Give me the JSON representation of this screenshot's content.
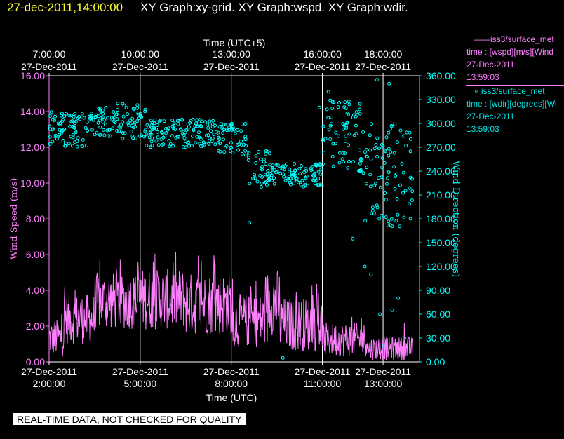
{
  "header": {
    "timestamp": "27-dec-2011,14:00:00",
    "graphs": "XY Graph:xy-grid.  XY Graph:wspd.  XY Graph:wdir."
  },
  "legend": {
    "wspd": {
      "name": "——iss3/surface_met",
      "var": "time : [wspd][m/s][Wind",
      "date": "27-Dec-2011",
      "time": "13:59:03"
    },
    "wdir": {
      "name": "∘ iss3/surface_met",
      "var": "time : [wdir][degrees][Wi",
      "date": "27-Dec-2011",
      "time": "13:59:03"
    }
  },
  "footer": {
    "note": "REAL-TIME DATA, NOT CHECKED FOR QUALITY"
  },
  "colors": {
    "wspd": "#ff80ff",
    "wdir": "#00ffff",
    "grid": "#ffffff",
    "header_time": "#ffff33"
  },
  "chart_data": {
    "type": "line",
    "title": "",
    "top_axis_label": "Time (UTC+5)",
    "xlabel": "Time (UTC)",
    "ylabel": "Wind Speed (m/s)",
    "y2label": "Wind Direction (degrees)",
    "xlim_hours": [
      2.0,
      14.2
    ],
    "ylim": [
      0,
      16
    ],
    "y2lim": [
      0,
      360
    ],
    "y_ticks": [
      "0.00",
      "2.00",
      "4.00",
      "6.00",
      "8.00",
      "10.00",
      "12.00",
      "14.00",
      "16.00"
    ],
    "y2_ticks": [
      "0.00",
      "30.00",
      "60.00",
      "90.00",
      "120.00",
      "150.00",
      "180.00",
      "210.00",
      "240.00",
      "270.00",
      "300.00",
      "330.00",
      "360.00"
    ],
    "bottom_ticks": [
      {
        "hour": 2,
        "date": "27-Dec-2011",
        "time": "2:00:00"
      },
      {
        "hour": 5,
        "date": "27-Dec-2011",
        "time": "5:00:00"
      },
      {
        "hour": 8,
        "date": "27-Dec-2011",
        "time": "8:00:00"
      },
      {
        "hour": 11,
        "date": "27-Dec-2011",
        "time": "11:00:00"
      },
      {
        "hour": 13,
        "date": "27-Dec-2011",
        "time": "13:00:00"
      }
    ],
    "top_ticks": [
      {
        "hour": 2,
        "time": "7:00:00",
        "date": "27-Dec-2011"
      },
      {
        "hour": 5,
        "time": "10:00:00",
        "date": "27-Dec-2011"
      },
      {
        "hour": 8,
        "time": "13:00:00",
        "date": "27-Dec-2011"
      },
      {
        "hour": 11,
        "time": "16:00:00",
        "date": "27-Dec-2011"
      },
      {
        "hour": 13,
        "time": "18:00:00",
        "date": "27-Dec-2011"
      }
    ],
    "grid_hours": [
      5,
      8,
      11,
      13
    ],
    "series": [
      {
        "name": "wspd",
        "axis": "left",
        "style": "line",
        "segments": [
          {
            "t0": 2.0,
            "t1": 2.5,
            "lo": 0.3,
            "hi": 2.4,
            "peak": 3.0
          },
          {
            "t0": 2.5,
            "t1": 3.5,
            "lo": 1.0,
            "hi": 3.8,
            "peak": 4.5
          },
          {
            "t0": 3.5,
            "t1": 5.0,
            "lo": 1.8,
            "hi": 5.0,
            "peak": 6.0
          },
          {
            "t0": 5.0,
            "t1": 6.5,
            "lo": 1.8,
            "hi": 5.2,
            "peak": 6.2
          },
          {
            "t0": 6.5,
            "t1": 8.0,
            "lo": 1.5,
            "hi": 5.0,
            "peak": 6.4
          },
          {
            "t0": 8.0,
            "t1": 9.2,
            "lo": 0.8,
            "hi": 3.8,
            "peak": 4.8
          },
          {
            "t0": 9.2,
            "t1": 9.6,
            "lo": 1.5,
            "hi": 5.2,
            "peak": 6.5
          },
          {
            "t0": 9.6,
            "t1": 11.0,
            "lo": 0.6,
            "hi": 3.6,
            "peak": 4.4
          },
          {
            "t0": 11.0,
            "t1": 12.5,
            "lo": 0.3,
            "hi": 2.2,
            "peak": 2.8
          },
          {
            "t0": 12.5,
            "t1": 14.0,
            "lo": 0.1,
            "hi": 1.4,
            "peak": 2.2
          }
        ]
      },
      {
        "name": "wdir",
        "axis": "right",
        "style": "scatter",
        "segments": [
          {
            "t0": 2.0,
            "t1": 3.5,
            "lo": 270,
            "hi": 315
          },
          {
            "t0": 3.5,
            "t1": 5.2,
            "lo": 280,
            "hi": 325
          },
          {
            "t0": 5.2,
            "t1": 7.5,
            "lo": 270,
            "hi": 305
          },
          {
            "t0": 7.5,
            "t1": 8.5,
            "lo": 260,
            "hi": 300
          },
          {
            "t0": 8.5,
            "t1": 9.3,
            "lo": 220,
            "hi": 270
          },
          {
            "t0": 9.3,
            "t1": 11.0,
            "lo": 220,
            "hi": 250
          },
          {
            "t0": 11.0,
            "t1": 12.3,
            "lo": 240,
            "hi": 330
          },
          {
            "t0": 12.3,
            "t1": 14.0,
            "lo": 170,
            "hi": 300
          }
        ],
        "outliers": [
          {
            "t": 8.6,
            "v": 175
          },
          {
            "t": 9.7,
            "v": 5
          },
          {
            "t": 10.9,
            "v": 320
          },
          {
            "t": 11.2,
            "v": 340
          },
          {
            "t": 12.0,
            "v": 155
          },
          {
            "t": 12.4,
            "v": 120
          },
          {
            "t": 12.6,
            "v": 110
          },
          {
            "t": 12.9,
            "v": 60
          },
          {
            "t": 13.3,
            "v": 65
          },
          {
            "t": 13.5,
            "v": 80
          },
          {
            "t": 13.0,
            "v": 20
          },
          {
            "t": 13.7,
            "v": 30
          },
          {
            "t": 13.9,
            "v": 180
          },
          {
            "t": 13.2,
            "v": 350
          },
          {
            "t": 12.8,
            "v": 355
          }
        ]
      }
    ]
  }
}
